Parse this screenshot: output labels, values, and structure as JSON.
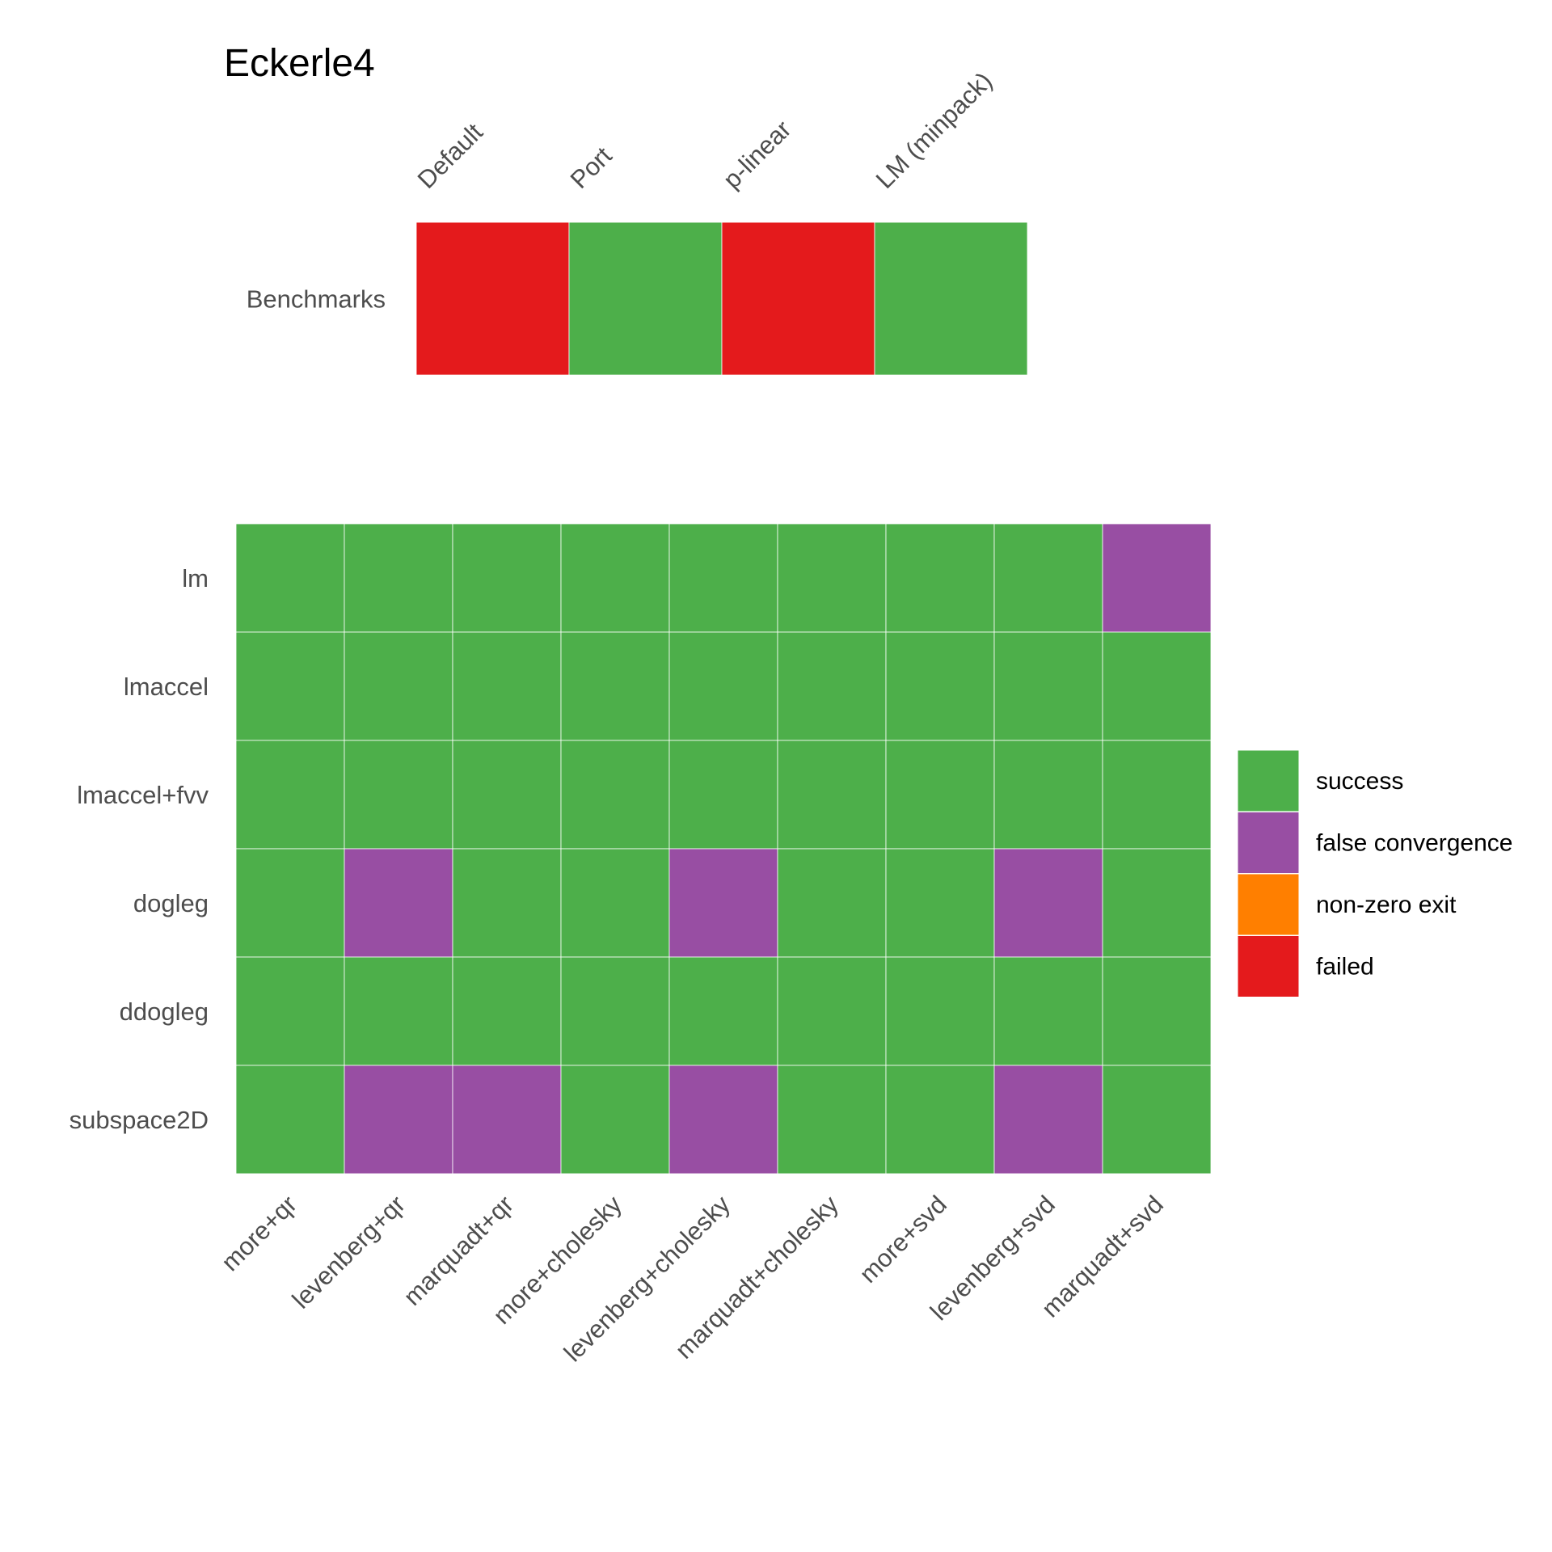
{
  "chart_data": [
    {
      "type": "heatmap",
      "title": "Eckerle4",
      "x_categories": [
        "Default",
        "Port",
        "p-linear",
        "LM (minpack)"
      ],
      "y_categories": [
        "Benchmarks"
      ],
      "values": [
        [
          "failed",
          "success",
          "failed",
          "success"
        ]
      ]
    },
    {
      "type": "heatmap",
      "x_categories": [
        "more+qr",
        "levenberg+qr",
        "marquadt+qr",
        "more+cholesky",
        "levenberg+cholesky",
        "marquadt+cholesky",
        "more+svd",
        "levenberg+svd",
        "marquadt+svd"
      ],
      "y_categories": [
        "lm",
        "lmaccel",
        "lmaccel+fvv",
        "dogleg",
        "ddogleg",
        "subspace2D"
      ],
      "values": [
        [
          "success",
          "success",
          "success",
          "success",
          "success",
          "success",
          "success",
          "success",
          "false convergence"
        ],
        [
          "success",
          "success",
          "success",
          "success",
          "success",
          "success",
          "success",
          "success",
          "success"
        ],
        [
          "success",
          "success",
          "success",
          "success",
          "success",
          "success",
          "success",
          "success",
          "success"
        ],
        [
          "success",
          "false convergence",
          "success",
          "success",
          "false convergence",
          "success",
          "success",
          "false convergence",
          "success"
        ],
        [
          "success",
          "success",
          "success",
          "success",
          "success",
          "success",
          "success",
          "success",
          "success"
        ],
        [
          "success",
          "false convergence",
          "false convergence",
          "success",
          "false convergence",
          "success",
          "success",
          "false convergence",
          "success"
        ]
      ]
    }
  ],
  "legend": {
    "position": "right",
    "items": [
      {
        "label": "success",
        "color": "#4daf4a"
      },
      {
        "label": "false convergence",
        "color": "#984ea3"
      },
      {
        "label": "non-zero exit",
        "color": "#ff7f00"
      },
      {
        "label": "failed",
        "color": "#e41a1c"
      }
    ]
  }
}
